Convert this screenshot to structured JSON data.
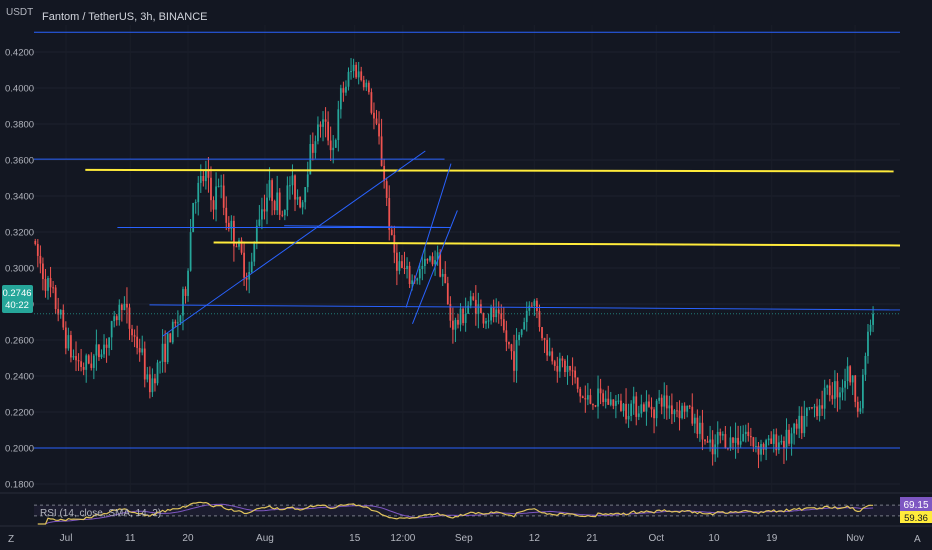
{
  "header": {
    "y_unit": "USDT",
    "symbol_title": "Fantom / TetherUS, 3h, BINANCE"
  },
  "price_panel": {
    "current_price": "0.2746",
    "countdown": "40:22"
  },
  "indicator": {
    "label": "RSI (14, close, SMA, 14, 2)",
    "rsi_value": "69.15",
    "rsi_ma_value": "59.36"
  },
  "footer": {
    "left_icon": "Z",
    "right_icon": "A"
  },
  "colors": {
    "background": "#131722",
    "up": "#26a69a",
    "down": "#ef5350",
    "trendline": "#2962ff",
    "level_yellow": "#ffeb3b",
    "rsi_line": "#e0c45c",
    "rsi_ma": "#7e57c2",
    "price_tag": "#26a69a",
    "rsi_tag": "#7e57c2",
    "rsi_ma_tag": "#ffeb3b"
  },
  "chart_data": {
    "type": "candlestick",
    "title": "Fantom / TetherUS, 3h, BINANCE",
    "ylabel": "USDT",
    "ylim": [
      0.175,
      0.435
    ],
    "y_ticks": [
      "0.4200",
      "0.4000",
      "0.3800",
      "0.3600",
      "0.3400",
      "0.3200",
      "0.3000",
      "0.2800",
      "0.2600",
      "0.2400",
      "0.2200",
      "0.2000",
      "0.1800"
    ],
    "x_ticks": [
      "Jul",
      "11",
      "20",
      "Aug",
      "15",
      "12:00",
      "Sep",
      "12",
      "21",
      "Oct",
      "10",
      "19",
      "Nov"
    ],
    "x_tick_days": [
      0,
      10,
      19,
      31,
      45,
      52.5,
      62,
      73,
      82,
      92,
      101,
      110,
      123
    ],
    "x_range_days": [
      -5,
      130
    ],
    "price_path": [
      [
        -5,
        0.315
      ],
      [
        -3,
        0.293
      ],
      [
        -1,
        0.276
      ],
      [
        1,
        0.252
      ],
      [
        3,
        0.245
      ],
      [
        5,
        0.252
      ],
      [
        7,
        0.262
      ],
      [
        9,
        0.283
      ],
      [
        10,
        0.268
      ],
      [
        12,
        0.252
      ],
      [
        13,
        0.232
      ],
      [
        14,
        0.242
      ],
      [
        16,
        0.258
      ],
      [
        18,
        0.274
      ],
      [
        19,
        0.292
      ],
      [
        20,
        0.338
      ],
      [
        22,
        0.352
      ],
      [
        23,
        0.334
      ],
      [
        24,
        0.348
      ],
      [
        25,
        0.33
      ],
      [
        27,
        0.312
      ],
      [
        28,
        0.3
      ],
      [
        29,
        0.296
      ],
      [
        30,
        0.328
      ],
      [
        32,
        0.344
      ],
      [
        34,
        0.33
      ],
      [
        35,
        0.348
      ],
      [
        37,
        0.336
      ],
      [
        38,
        0.362
      ],
      [
        40,
        0.382
      ],
      [
        42,
        0.366
      ],
      [
        43,
        0.395
      ],
      [
        45,
        0.412
      ],
      [
        47,
        0.402
      ],
      [
        48,
        0.385
      ],
      [
        49,
        0.37
      ],
      [
        50,
        0.344
      ],
      [
        51,
        0.312
      ],
      [
        52,
        0.302
      ],
      [
        54,
        0.292
      ],
      [
        56,
        0.301
      ],
      [
        58,
        0.308
      ],
      [
        59,
        0.296
      ],
      [
        60,
        0.272
      ],
      [
        61,
        0.268
      ],
      [
        63,
        0.28
      ],
      [
        64,
        0.282
      ],
      [
        65,
        0.272
      ],
      [
        67,
        0.274
      ],
      [
        68,
        0.268
      ],
      [
        69,
        0.258
      ],
      [
        70,
        0.25
      ],
      [
        72,
        0.277
      ],
      [
        73,
        0.283
      ],
      [
        74,
        0.27
      ],
      [
        75,
        0.255
      ],
      [
        77,
        0.247
      ],
      [
        79,
        0.242
      ],
      [
        80,
        0.232
      ],
      [
        81,
        0.226
      ],
      [
        83,
        0.227
      ],
      [
        85,
        0.226
      ],
      [
        87,
        0.223
      ],
      [
        89,
        0.224
      ],
      [
        91,
        0.222
      ],
      [
        93,
        0.226
      ],
      [
        95,
        0.222
      ],
      [
        97,
        0.222
      ],
      [
        98,
        0.215
      ],
      [
        99,
        0.21
      ],
      [
        100,
        0.202
      ],
      [
        101,
        0.196
      ],
      [
        102,
        0.207
      ],
      [
        104,
        0.203
      ],
      [
        106,
        0.21
      ],
      [
        107,
        0.203
      ],
      [
        109,
        0.201
      ],
      [
        111,
        0.204
      ],
      [
        113,
        0.205
      ],
      [
        115,
        0.213
      ],
      [
        116,
        0.22
      ],
      [
        118,
        0.226
      ],
      [
        119,
        0.232
      ],
      [
        121,
        0.234
      ],
      [
        122,
        0.243
      ],
      [
        123,
        0.233
      ],
      [
        124,
        0.222
      ],
      [
        125,
        0.26
      ],
      [
        126,
        0.2746
      ]
    ],
    "horizontal_levels": [
      {
        "color": "blue",
        "price": 0.431,
        "from_day": -5,
        "to_day": 130
      },
      {
        "color": "blue",
        "price": 0.3605,
        "from_day": -5,
        "to_day": 59
      },
      {
        "color": "blue",
        "price": 0.3225,
        "from_day": 8,
        "to_day": 60
      },
      {
        "color": "blue",
        "price": 0.2795,
        "from_day": 13,
        "to_day": 130
      },
      {
        "color": "blue",
        "price": 0.2,
        "from_day": -5,
        "to_day": 130
      },
      {
        "color": "yellow",
        "price": 0.3545,
        "from_day": 3,
        "to_day": 129
      },
      {
        "color": "yellow",
        "price": 0.3142,
        "from_day": 23,
        "to_day": 130
      }
    ],
    "trendlines": [
      {
        "from": [
          15,
          0.262
        ],
        "to": [
          56,
          0.365
        ]
      },
      {
        "from": [
          34,
          0.3235
        ],
        "to": [
          60,
          0.3225
        ]
      },
      {
        "from": [
          53,
          0.278
        ],
        "to": [
          60,
          0.358
        ]
      },
      {
        "from": [
          54,
          0.269
        ],
        "to": [
          61,
          0.332
        ]
      }
    ],
    "rsi": {
      "name": "RSI (14, close, SMA, 14, 2)",
      "last": 69.15,
      "ma_last": 59.36,
      "upper_band": 70,
      "lower_band": 30
    }
  }
}
